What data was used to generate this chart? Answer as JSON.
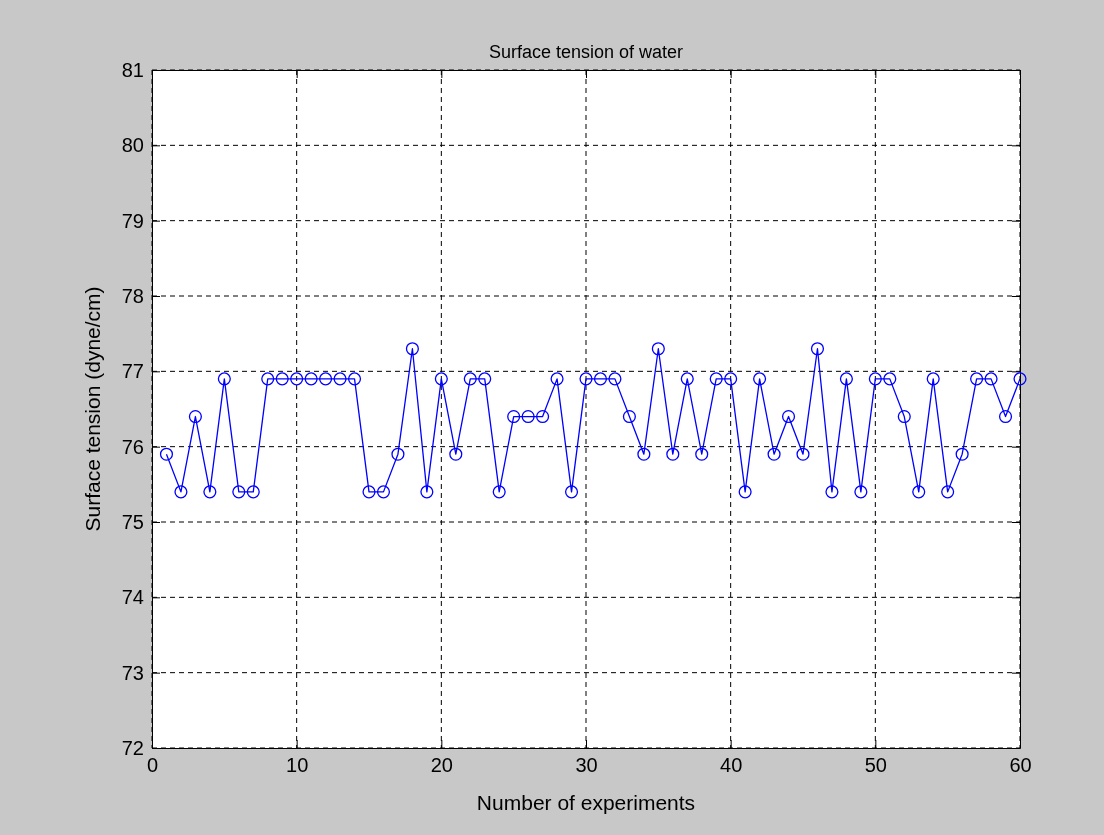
{
  "chart_data": {
    "type": "line",
    "title": "Surface tension of water",
    "xlabel": "Number of experiments",
    "ylabel": "Surface tension (dyne/cm)",
    "x": [
      1,
      2,
      3,
      4,
      5,
      6,
      7,
      8,
      9,
      10,
      11,
      12,
      13,
      14,
      15,
      16,
      17,
      18,
      19,
      20,
      21,
      22,
      23,
      24,
      25,
      26,
      27,
      28,
      29,
      30,
      31,
      32,
      33,
      34,
      35,
      36,
      37,
      38,
      39,
      40,
      41,
      42,
      43,
      44,
      45,
      46,
      47,
      48,
      49,
      50,
      51,
      52,
      53,
      54,
      55,
      56,
      57,
      58,
      59,
      60
    ],
    "series": [
      {
        "color": "#0000ff",
        "values": [
          75.9,
          75.4,
          76.4,
          75.4,
          76.9,
          75.4,
          75.4,
          76.9,
          76.9,
          76.9,
          76.9,
          76.9,
          76.9,
          76.9,
          75.4,
          75.4,
          75.9,
          77.3,
          75.4,
          76.9,
          75.9,
          76.9,
          76.9,
          75.4,
          76.4,
          76.4,
          76.4,
          76.9,
          75.4,
          76.9,
          76.9,
          76.9,
          76.4,
          75.9,
          77.3,
          75.9,
          76.9,
          75.9,
          76.9,
          76.9,
          75.4,
          76.9,
          75.9,
          76.4,
          75.9,
          77.3,
          75.4,
          76.9,
          75.4,
          76.9,
          76.9,
          76.4,
          75.4,
          76.9,
          75.4,
          75.9,
          76.9,
          76.9,
          76.4,
          76.9
        ]
      }
    ],
    "xlim": [
      0,
      60
    ],
    "xticks": [
      0,
      10,
      20,
      30,
      40,
      50,
      60
    ],
    "ylim": [
      72,
      81
    ],
    "yticks": [
      72,
      73,
      74,
      75,
      76,
      77,
      78,
      79,
      80,
      81
    ],
    "grid": true,
    "marker": "circle",
    "line_style": "solid"
  }
}
